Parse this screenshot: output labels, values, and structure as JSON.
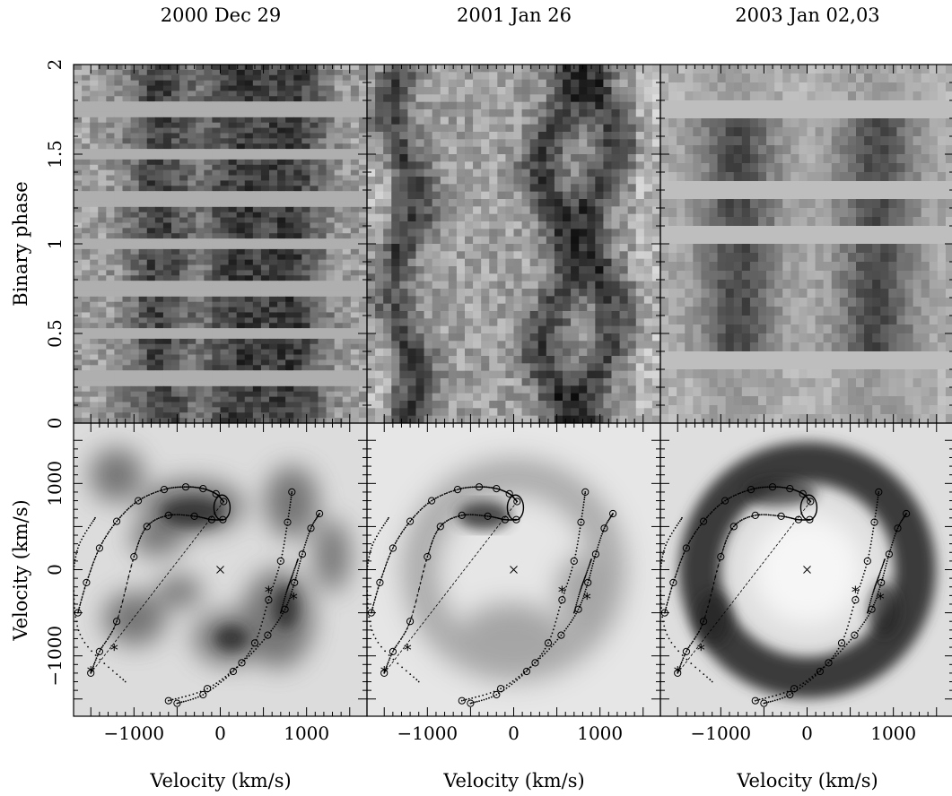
{
  "figure": {
    "column_titles": [
      "2000 Dec 29",
      "2001 Jan 26",
      "2003 Jan 02,03"
    ],
    "row_labels": {
      "top_ylabel": "Binary phase",
      "bottom_ylabel": "Velocity (km/s)",
      "xlabel": "Velocity (km/s)"
    }
  },
  "chart_data": [
    {
      "type": "heatmap",
      "subtype": "trailed-spectrogram",
      "panel": "top-left",
      "title": "2000 Dec 29",
      "ylabel": "Binary phase",
      "xlim": [
        -1700,
        1700
      ],
      "ylim": [
        0,
        2
      ],
      "yticks": [
        0,
        0.5,
        1,
        1.5,
        2
      ],
      "colormap": "grayscale-inverted",
      "gap_phases": [
        0.25,
        0.5,
        0.75,
        1.0,
        1.25,
        1.5,
        1.75
      ],
      "dark_band_velocities": [
        -700,
        200,
        850
      ]
    },
    {
      "type": "heatmap",
      "subtype": "trailed-spectrogram",
      "panel": "top-center",
      "title": "2001 Jan 26",
      "xlim": [
        -1700,
        1700
      ],
      "ylim": [
        0,
        2
      ],
      "colormap": "grayscale-inverted",
      "dark_band_velocities": [
        -1300,
        500,
        1000
      ]
    },
    {
      "type": "heatmap",
      "subtype": "trailed-spectrogram",
      "panel": "top-right",
      "title": "2003 Jan 02,03",
      "xlim": [
        -1700,
        1700
      ],
      "ylim": [
        0,
        2
      ],
      "colormap": "grayscale-inverted",
      "gap_phases": [
        0.35,
        1.05,
        1.3,
        1.75
      ],
      "dark_band_velocities": [
        -800,
        800
      ]
    },
    {
      "type": "heatmap",
      "subtype": "doppler-tomogram",
      "panel": "bottom-left",
      "ylabel": "Velocity (km/s)",
      "xlabel": "Velocity (km/s)",
      "xlim": [
        -1700,
        1700
      ],
      "ylim": [
        -1700,
        1700
      ],
      "xticks": [
        -1000,
        0,
        1000
      ],
      "yticks": [
        -1000,
        0,
        1000
      ],
      "center_marker": [
        0,
        0
      ],
      "emission": "patchy ring"
    },
    {
      "type": "heatmap",
      "subtype": "doppler-tomogram",
      "panel": "bottom-center",
      "xlabel": "Velocity (km/s)",
      "xlim": [
        -1700,
        1700
      ],
      "ylim": [
        -1700,
        1700
      ],
      "xticks": [
        -1000,
        0,
        1000
      ],
      "center_marker": [
        0,
        0
      ],
      "emission": "faint ring with bright spot"
    },
    {
      "type": "heatmap",
      "subtype": "doppler-tomogram",
      "panel": "bottom-right",
      "xlabel": "Velocity (km/s)",
      "xlim": [
        -1700,
        1700
      ],
      "ylim": [
        -1700,
        1700
      ],
      "xticks": [
        -1000,
        0,
        1000
      ],
      "center_marker": [
        0,
        0
      ],
      "emission": "strong complete ring"
    }
  ]
}
